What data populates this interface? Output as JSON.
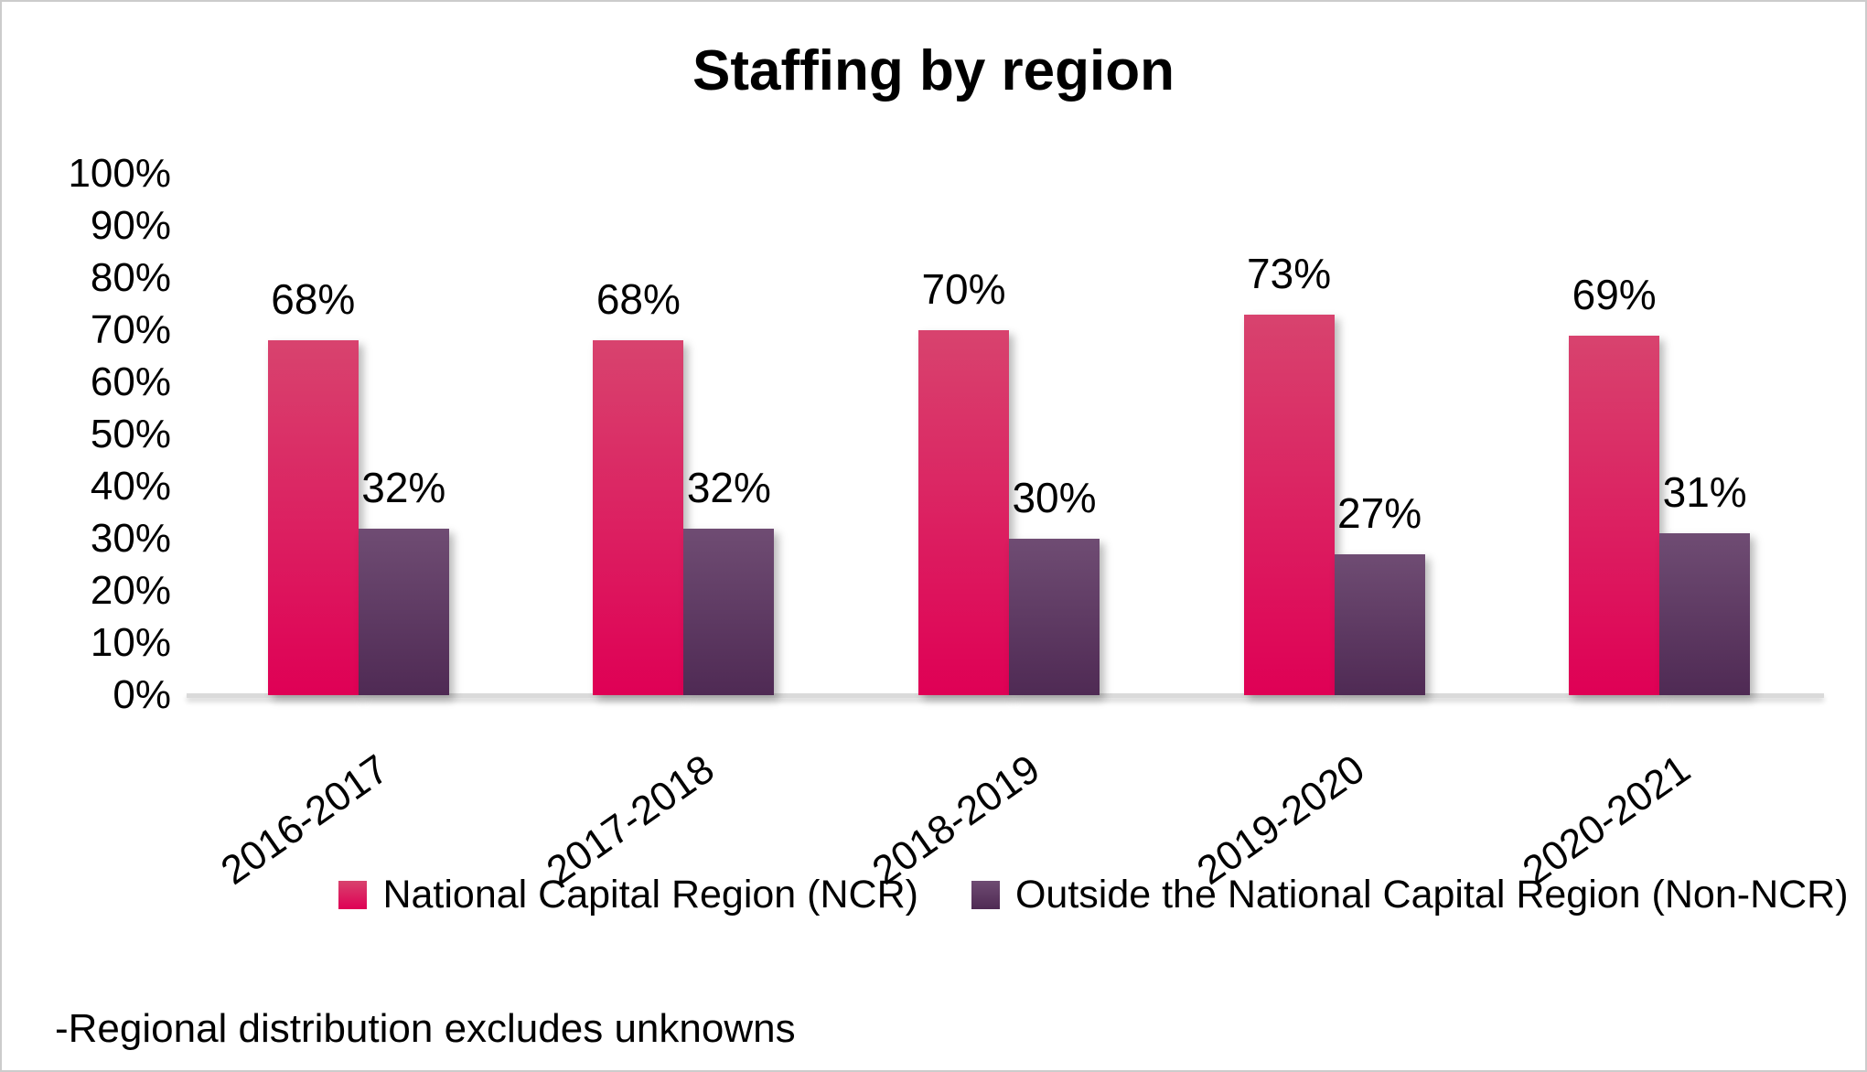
{
  "title": "Staffing by region",
  "footnote": "-Regional distribution excludes unknowns",
  "y_axis": {
    "tick_labels_top_to_bottom": [
      "100%",
      "90%",
      "80%",
      "70%",
      "60%",
      "50%",
      "40%",
      "30%",
      "20%",
      "10%",
      "0%"
    ]
  },
  "legend": {
    "items": [
      {
        "label": "National Capital Region (NCR)"
      },
      {
        "label": "Outside the National Capital Region (Non-NCR)"
      }
    ]
  },
  "colors": {
    "ncr_gradient_top": "#D8436E",
    "ncr_gradient_bottom": "#DF0055",
    "non_ncr_gradient_top": "#6F4C73",
    "non_ncr_gradient_bottom": "#4F2A54",
    "axis_line": "#DADADA"
  },
  "chart_data": {
    "type": "bar",
    "title": "Staffing by region",
    "categories": [
      "2016-2017",
      "2017-2018",
      "2018-2019",
      "2019-2020",
      "2020-2021"
    ],
    "series": [
      {
        "name": "National Capital Region (NCR)",
        "values": [
          68,
          68,
          70,
          73,
          69
        ],
        "data_labels": [
          "68%",
          "68%",
          "70%",
          "73%",
          "69%"
        ],
        "color_top": "#D8436E",
        "color_bottom": "#DF0055"
      },
      {
        "name": "Outside the National Capital Region (Non-NCR)",
        "values": [
          32,
          32,
          30,
          27,
          31
        ],
        "data_labels": [
          "32%",
          "32%",
          "30%",
          "27%",
          "31%"
        ],
        "color_top": "#6F4C73",
        "color_bottom": "#4F2A54"
      }
    ],
    "xlabel": "",
    "ylabel": "",
    "ylim": [
      0,
      100
    ],
    "y_tick_step": 10,
    "grid": false,
    "legend_position": "bottom",
    "data_labels_shown": true,
    "x_label_rotation_deg": -35
  }
}
